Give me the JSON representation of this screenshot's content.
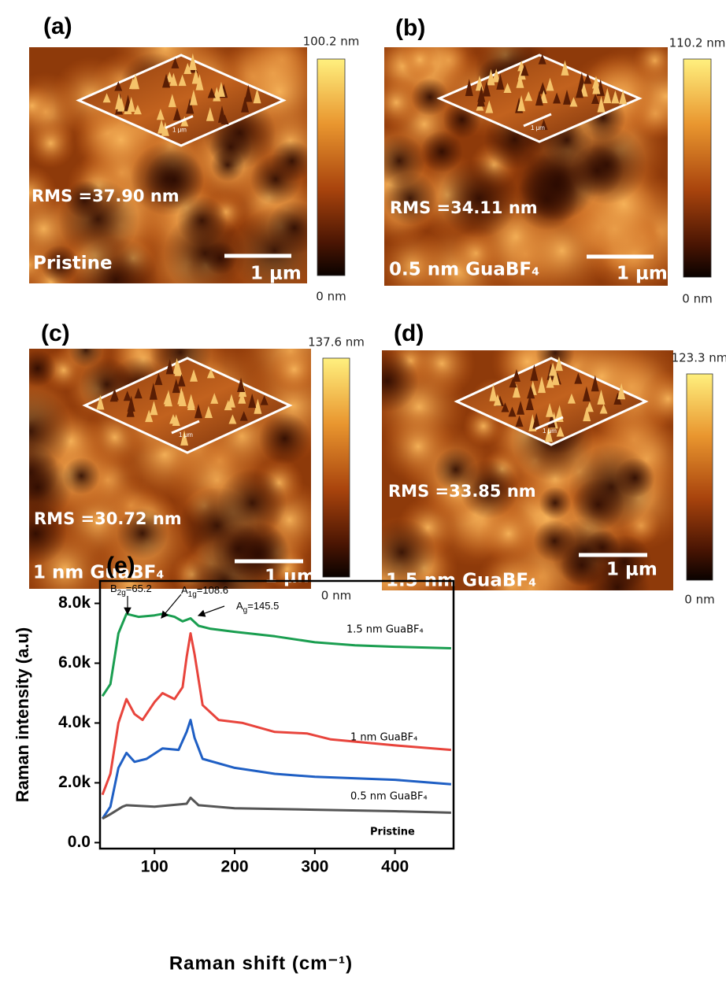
{
  "panels": [
    {
      "label": "(a)",
      "rms": "RMS =37.90 nm",
      "sample": "Pristine",
      "scale_bar": "1 μm",
      "inset_scale": "1 μm",
      "colorbar_max": "100.2 nm",
      "colorbar_min": "0 nm"
    },
    {
      "label": "(b)",
      "rms": "RMS =34.11 nm",
      "sample": "0.5 nm GuaBF₄",
      "scale_bar": "1 μm",
      "inset_scale": "1 μm",
      "colorbar_max": "110.2 nm",
      "colorbar_min": "0 nm"
    },
    {
      "label": "(c)",
      "rms": "RMS =30.72 nm",
      "sample": "1 nm GuaBF₄",
      "scale_bar": "1 μm",
      "inset_scale": "1 μm",
      "colorbar_max": "137.6 nm",
      "colorbar_min": "0 nm"
    },
    {
      "label": "(d)",
      "rms": "RMS =33.85 nm",
      "sample": "1.5 nm GuaBF₄",
      "scale_bar": "1 μm",
      "inset_scale": "1 μm",
      "colorbar_max": "123.3 nm",
      "colorbar_min": "0 nm"
    }
  ],
  "chart_data": {
    "type": "line",
    "panel_label": "(e)",
    "x_label": "Raman shift (cm⁻¹)",
    "y_label": "Raman intensity (a.u)",
    "xlim": [
      32,
      473
    ],
    "ylim": [
      -200,
      8750
    ],
    "xticks": [
      100,
      200,
      300,
      400
    ],
    "yticks": [
      {
        "value": 0,
        "label": "0.0"
      },
      {
        "value": 2000,
        "label": "2.0k"
      },
      {
        "value": 4000,
        "label": "4.0k"
      },
      {
        "value": 6000,
        "label": "6.0k"
      },
      {
        "value": 8000,
        "label": "8.0k"
      }
    ],
    "annotations": [
      {
        "main": "B",
        "sub": "2g",
        "rest": "=65.2"
      },
      {
        "main": "A",
        "sub": "1g",
        "rest": "=108.6"
      },
      {
        "main": "A",
        "sub": "g",
        "rest": "=145.5"
      }
    ],
    "series": [
      {
        "name": "1.5 nm GuaBF₄",
        "color": "#1a9e50",
        "x": [
          35,
          45,
          55,
          65,
          80,
          100,
          110,
          125,
          135,
          145,
          155,
          170,
          200,
          250,
          300,
          350,
          400,
          470
        ],
        "values": [
          4900,
          5300,
          7000,
          7650,
          7550,
          7600,
          7650,
          7550,
          7400,
          7500,
          7250,
          7150,
          7050,
          6900,
          6700,
          6600,
          6550,
          6500
        ]
      },
      {
        "name": "1 nm GuaBF₄",
        "color": "#e8443c",
        "x": [
          35,
          45,
          55,
          65,
          75,
          85,
          100,
          110,
          125,
          135,
          140,
          145,
          150,
          160,
          180,
          210,
          250,
          290,
          320,
          400,
          470
        ],
        "values": [
          1600,
          2300,
          4000,
          4800,
          4300,
          4100,
          4700,
          5000,
          4800,
          5200,
          6200,
          7000,
          6300,
          4600,
          4100,
          4000,
          3700,
          3650,
          3450,
          3250,
          3100
        ]
      },
      {
        "name": "0.5 nm GuaBF₄",
        "color": "#1f5fc4",
        "x": [
          35,
          45,
          55,
          65,
          75,
          90,
          110,
          130,
          140,
          145,
          150,
          160,
          200,
          250,
          300,
          400,
          470
        ],
        "values": [
          800,
          1200,
          2500,
          3000,
          2700,
          2800,
          3150,
          3100,
          3700,
          4100,
          3500,
          2800,
          2500,
          2300,
          2200,
          2100,
          1950
        ]
      },
      {
        "name": "Pristine",
        "color": "#555555",
        "x": [
          35,
          45,
          60,
          65,
          100,
          120,
          140,
          145,
          155,
          200,
          300,
          400,
          470
        ],
        "values": [
          800,
          950,
          1200,
          1250,
          1200,
          1250,
          1300,
          1500,
          1250,
          1150,
          1100,
          1050,
          1000
        ]
      }
    ]
  }
}
